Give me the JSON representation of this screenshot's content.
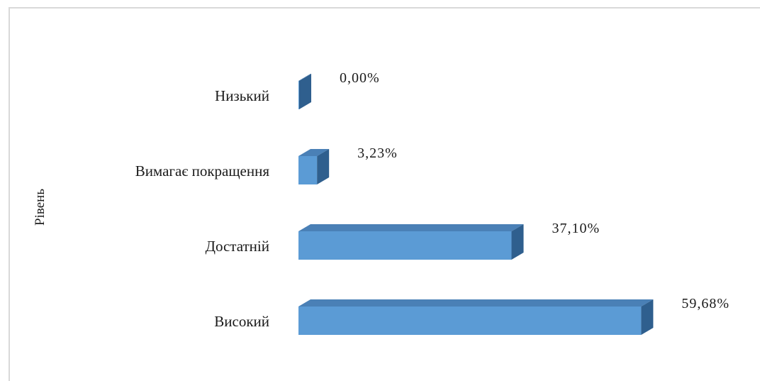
{
  "chart_data": {
    "type": "bar",
    "orientation": "horizontal",
    "style": "3d",
    "categories": [
      "Низький",
      "Вимагає покращення",
      "Достатній",
      "Високий"
    ],
    "values": [
      0.0,
      3.23,
      37.1,
      59.68
    ],
    "value_labels": [
      "0,00%",
      "3,23%",
      "37,10%",
      "59,68%"
    ],
    "title": "",
    "xlabel": "",
    "ylabel": "Рівень",
    "xlim": [
      0,
      60
    ],
    "grid": false,
    "legend": "none",
    "colors": {
      "front": "#5b9bd5",
      "top": "#4a80b6",
      "side": "#2f5f8e"
    }
  }
}
